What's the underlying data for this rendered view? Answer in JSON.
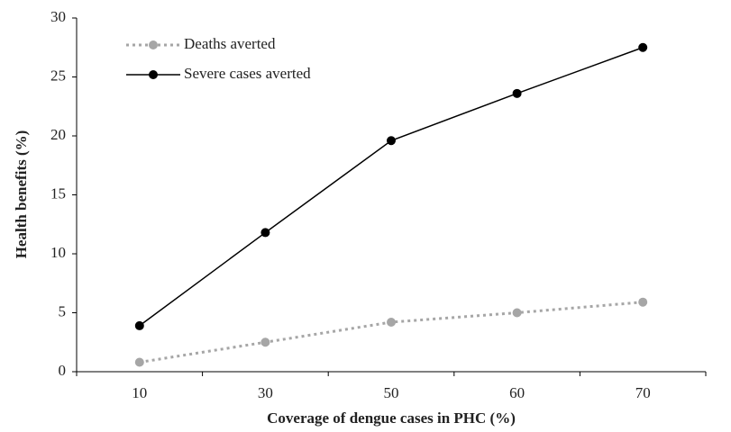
{
  "chart_data": {
    "type": "line",
    "xlabel": "Coverage of dengue cases in PHC (%)",
    "ylabel": "Health benefits (%)",
    "categories": [
      "10",
      "30",
      "50",
      "60",
      "70"
    ],
    "series": [
      {
        "name": "Deaths averted",
        "color": "#a6a6a6",
        "dashed": true,
        "values": [
          0.8,
          2.5,
          4.2,
          5.0,
          5.9
        ]
      },
      {
        "name": "Severe cases averted",
        "color": "#000000",
        "dashed": false,
        "values": [
          3.9,
          11.8,
          19.6,
          23.6,
          27.5
        ]
      }
    ],
    "ylim": [
      0,
      30
    ],
    "yticks": [
      0,
      5,
      10,
      15,
      20,
      25,
      30
    ],
    "grid": false,
    "legend": "upper left"
  }
}
